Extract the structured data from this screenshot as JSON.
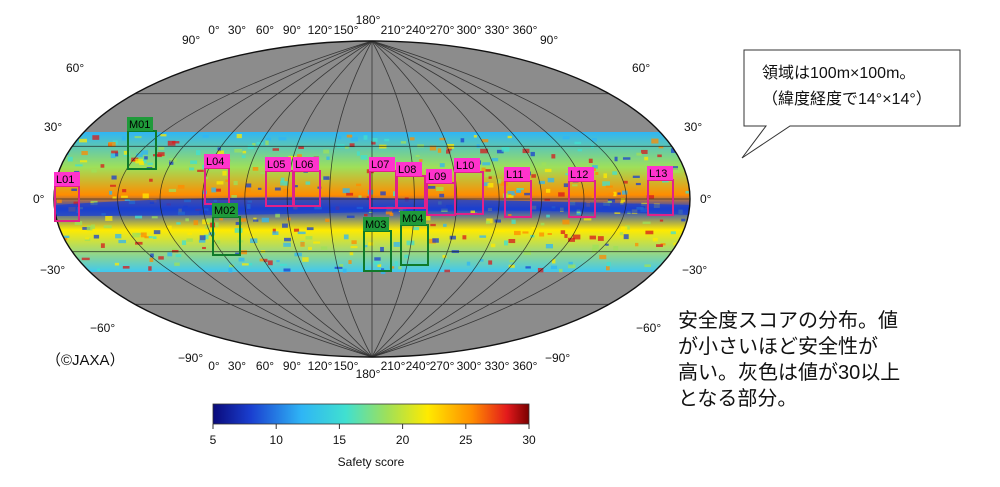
{
  "map": {
    "lon_top": [
      "0°",
      "30°",
      "60°",
      "90°",
      "120°",
      "150°",
      "180°",
      "210°",
      "240°",
      "270°",
      "300°",
      "330°",
      "360°"
    ],
    "lon_bottom": [
      "0°",
      "30°",
      "60°",
      "90°",
      "120°",
      "150°",
      "180°",
      "210°",
      "240°",
      "270°",
      "300°",
      "330°",
      "360°"
    ],
    "lat_left": [
      "60°",
      "30°",
      "0°",
      "−30°",
      "−60°"
    ],
    "lat_right": [
      "60°",
      "30°",
      "0°",
      "−30°",
      "−60°"
    ],
    "pole_top": "90°",
    "pole_bottom": "−90°",
    "colors": {
      "ocean": "#8c8c8c",
      "high": "#d7191c",
      "mid": "#ffea00",
      "low": "#1a3fd0"
    }
  },
  "sites": [
    {
      "id": "L01",
      "type": "L"
    },
    {
      "id": "L04",
      "type": "L"
    },
    {
      "id": "L05",
      "type": "L"
    },
    {
      "id": "L06",
      "type": "L"
    },
    {
      "id": "L07",
      "type": "L"
    },
    {
      "id": "L08",
      "type": "L"
    },
    {
      "id": "L09",
      "type": "L"
    },
    {
      "id": "L10",
      "type": "L"
    },
    {
      "id": "L11",
      "type": "L"
    },
    {
      "id": "L12",
      "type": "L"
    },
    {
      "id": "L13",
      "type": "L"
    },
    {
      "id": "M01",
      "type": "M"
    },
    {
      "id": "M02",
      "type": "M"
    },
    {
      "id": "M03",
      "type": "M"
    },
    {
      "id": "M04",
      "type": "M"
    }
  ],
  "colorbar": {
    "ticks": [
      "5",
      "10",
      "15",
      "20",
      "25",
      "30"
    ],
    "label": "Safety score"
  },
  "callout": {
    "line1": "領域は100m×100m。",
    "line2": "（緯度経度で14°×14°）"
  },
  "caption": {
    "line1": "安全度スコアの分布。値",
    "line2": "が小さいほど安全性が",
    "line3": "高い。灰色は値が30以上",
    "line4": "となる部分。"
  },
  "credit": "（©JAXA）"
}
